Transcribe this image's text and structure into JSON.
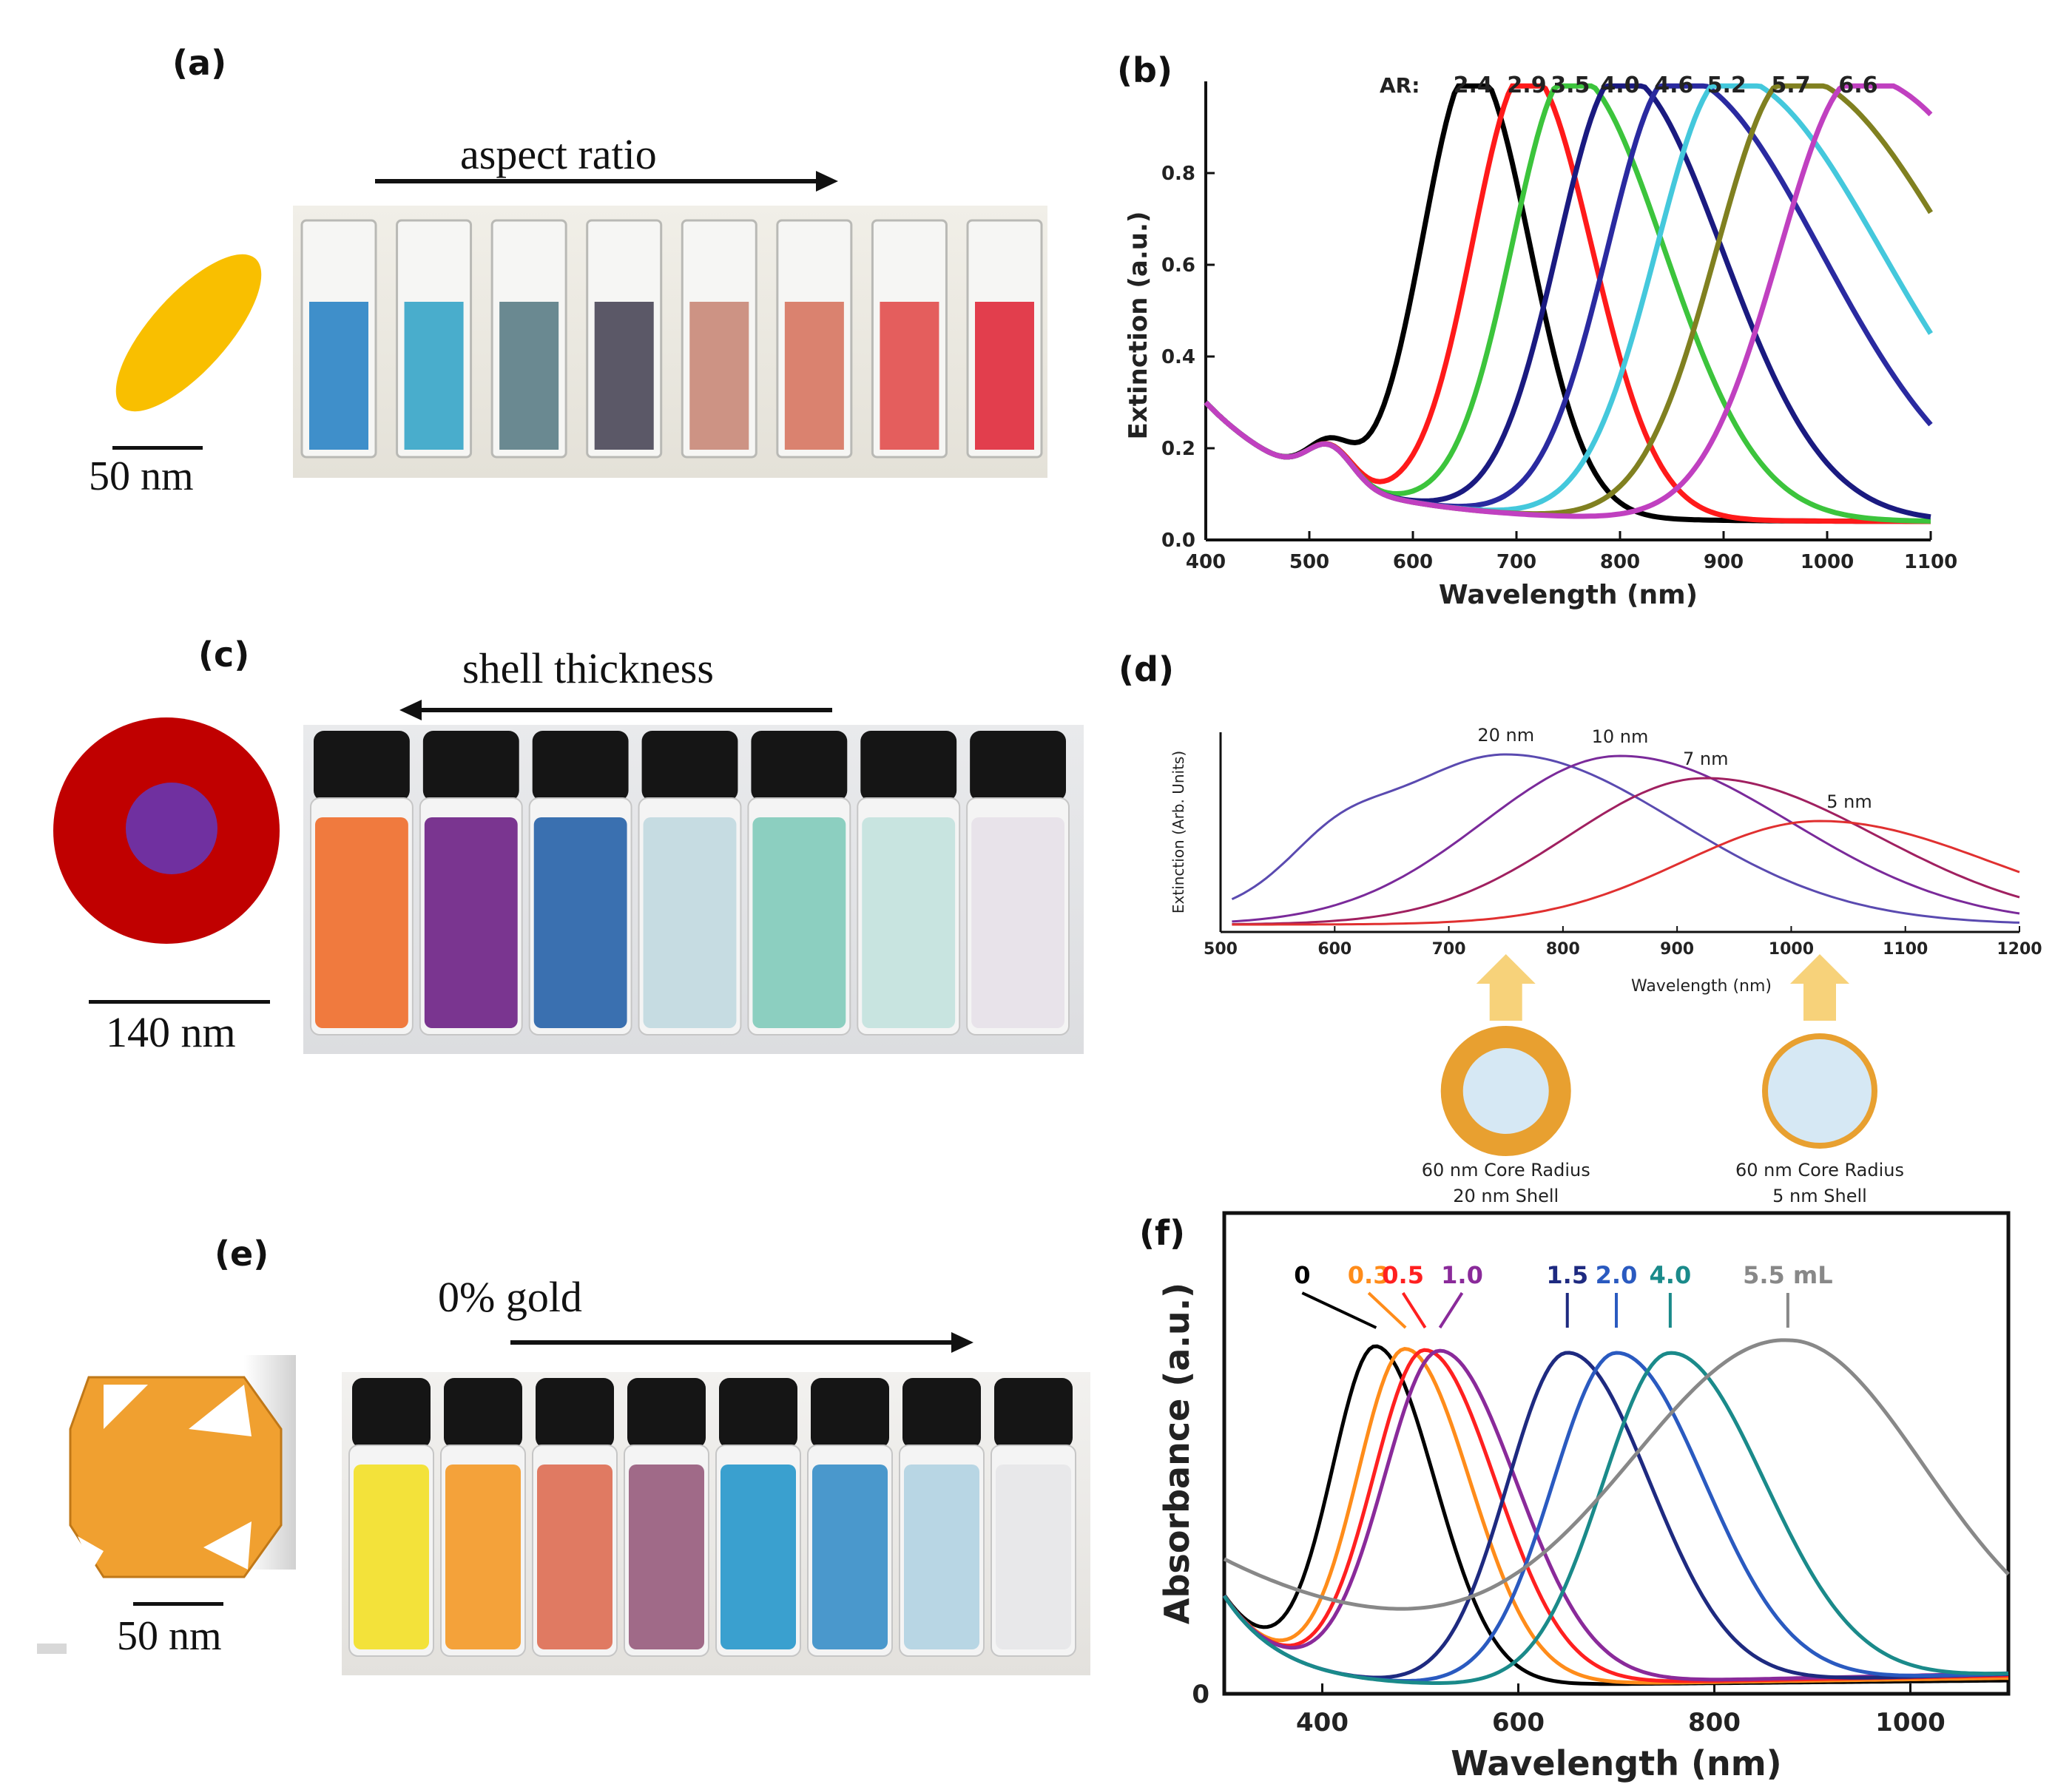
{
  "panels": {
    "a": {
      "label": "(a)",
      "arrow_label": "aspect ratio",
      "scale_label": "50 nm",
      "shape_color": "#F9BF00",
      "cuvette_colors": [
        "#2f86c6",
        "#3aa6c8",
        "#5d7f88",
        "#4d4a5a",
        "#c98a7a",
        "#d77763",
        "#e2504f",
        "#e02e3e"
      ]
    },
    "c": {
      "label": "(c)",
      "arrow_label": "shell thickness",
      "scale_label": "140 nm",
      "shell_color": "#C00000",
      "core_color": "#7030A0",
      "vial_colors": [
        "#f07a3e",
        "#7a3590",
        "#3a70b0",
        "#c6dce2",
        "#8ccfc0",
        "#c8e4e0",
        "#e8e3ea"
      ]
    },
    "e": {
      "label": "(e)",
      "arrow_label": "0% gold",
      "scale_label": "50 nm",
      "shape_color": "#F0A030",
      "vial_colors": [
        "#f3e23a",
        "#f4a23a",
        "#e07a62",
        "#a06a88",
        "#3aa0cf",
        "#4a98cc",
        "#b8d6e4",
        "#e8e8ea"
      ]
    }
  },
  "chart_data": [
    {
      "id": "b",
      "panel_label": "(b)",
      "type": "line",
      "title": "",
      "xlabel": "Wavelength (nm)",
      "ylabel": "Extinction (a.u.)",
      "xlim": [
        400,
        1100
      ],
      "ylim": [
        0,
        1.0
      ],
      "xticks": [
        400,
        500,
        600,
        700,
        800,
        900,
        1000,
        1100
      ],
      "xtick_labels": [
        "400",
        "500",
        "600",
        "700",
        "800",
        "900",
        "1000",
        "1100"
      ],
      "yticks": [
        0,
        0.2,
        0.4,
        0.6,
        0.8
      ],
      "ytick_labels": [
        "0.0",
        "0.2",
        "0.4",
        "0.6",
        "0.8"
      ],
      "legend_prefix": "AR:",
      "transverse_peak_nm": 520,
      "series": [
        {
          "name": "2.4",
          "peak": 658,
          "color": "#000000",
          "tail": "steep"
        },
        {
          "name": "2.9",
          "peak": 710,
          "color": "#ff1a1a",
          "tail": "steep"
        },
        {
          "name": "3.5",
          "peak": 752,
          "color": "#3cc43c",
          "tail": "mid"
        },
        {
          "name": "4.0",
          "peak": 800,
          "color": "#1a1a80",
          "tail": "mid"
        },
        {
          "name": "4.6",
          "peak": 852,
          "color": "#2a2aa0",
          "tail": "wide"
        },
        {
          "name": "5.2",
          "peak": 903,
          "color": "#44c8dc",
          "tail": "wide"
        },
        {
          "name": "5.7",
          "peak": 965,
          "color": "#808020",
          "tail": "wide"
        },
        {
          "name": "6.6",
          "peak": 1030,
          "color": "#c040c0",
          "tail": "wide"
        }
      ]
    },
    {
      "id": "d",
      "panel_label": "(d)",
      "type": "line",
      "xlabel": "Wavelength (nm)",
      "ylabel": "Extinction (Arb. Units)",
      "xlim": [
        500,
        1200
      ],
      "xticks": [
        500,
        600,
        700,
        800,
        900,
        1000,
        1100,
        1200
      ],
      "xtick_labels": [
        "500",
        "600",
        "700",
        "800",
        "900",
        "1000",
        "1100",
        "1200"
      ],
      "series": [
        {
          "name": "20 nm",
          "peak": 750,
          "color": "#5a4ab0"
        },
        {
          "name": "10 nm",
          "peak": 850,
          "color": "#7a2a9a"
        },
        {
          "name": "7 nm",
          "peak": 925,
          "color": "#a02060"
        },
        {
          "name": "5 nm",
          "peak": 1025,
          "color": "#e03030"
        }
      ],
      "annotations": [
        {
          "text_line1": "60 nm Core Radius",
          "text_line2": "20 nm Shell",
          "at_nm": 750
        },
        {
          "text_line1": "60 nm Core Radius",
          "text_line2": "5 nm Shell",
          "at_nm": 1025
        }
      ]
    },
    {
      "id": "f",
      "panel_label": "(f)",
      "type": "line",
      "xlabel": "Wavelength (nm)",
      "ylabel": "Absorbance (a.u.)",
      "xlim": [
        300,
        1100
      ],
      "xticks": [
        400,
        600,
        800,
        1000
      ],
      "xtick_labels": [
        "400",
        "600",
        "800",
        "1000"
      ],
      "ytick_labels": [
        "0"
      ],
      "series": [
        {
          "name": "0",
          "peak": 455,
          "color": "#000000"
        },
        {
          "name": "0.3",
          "peak": 485,
          "color": "#ff8c1a"
        },
        {
          "name": "0.5",
          "peak": 505,
          "color": "#ff2020"
        },
        {
          "name": "1.0",
          "peak": 520,
          "color": "#8a2a9a"
        },
        {
          "name": "1.5",
          "peak": 650,
          "color": "#1e2a80"
        },
        {
          "name": "2.0",
          "peak": 700,
          "color": "#2a5ac0"
        },
        {
          "name": "4.0",
          "peak": 755,
          "color": "#1a8a8a"
        },
        {
          "name": "5.5 mL",
          "peak": 875,
          "color": "#888888"
        }
      ]
    }
  ]
}
